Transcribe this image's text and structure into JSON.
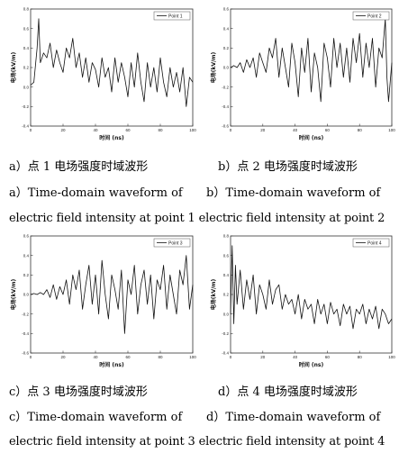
{
  "captions": {
    "a_cn": "a）点 1 电场强度时域波形",
    "b_cn": "b）点 2 电场强度时域波形",
    "ab_en_1a": "a）Time-domain waveform of",
    "ab_en_1b": "b）Time-domain waveform of",
    "ab_en_2": "electric field intensity at point 1 electric field intensity at point 2",
    "c_cn": "c）点 3 电场强度时域波形",
    "d_cn": "d）点 4 电场强度时域波形",
    "cd_en_1a": "c）Time-domain waveform of",
    "cd_en_1b": "d）Time-domain waveform of",
    "cd_en_2": "electric field intensity at point 3 electric field intensity at point 4"
  },
  "chart_data": [
    {
      "type": "line",
      "xlabel": "时间 (ns)",
      "ylabel": "电场(kV/m)",
      "xlim": [
        0,
        100
      ],
      "ylim": [
        -0.4,
        0.8
      ],
      "xticks": [
        "0",
        "20",
        "40",
        "60",
        "80",
        "100"
      ],
      "yticks": [
        "-0.4",
        "-0.2",
        "0.0",
        "0.2",
        "0.4",
        "0.6",
        "0.8"
      ],
      "legend": "Point 1",
      "legend_position": "top-right",
      "series": [
        {
          "name": "Point 1",
          "x": [
            0,
            2,
            4,
            5,
            6,
            8,
            10,
            12,
            14,
            16,
            18,
            20,
            22,
            24,
            26,
            28,
            30,
            32,
            34,
            36,
            38,
            40,
            42,
            44,
            46,
            48,
            50,
            52,
            54,
            56,
            58,
            60,
            62,
            64,
            66,
            68,
            70,
            72,
            74,
            76,
            78,
            80,
            82,
            84,
            86,
            88,
            90,
            92,
            94,
            96,
            98,
            100
          ],
          "y": [
            0.02,
            0.05,
            0.4,
            0.7,
            0.25,
            0.35,
            0.3,
            0.45,
            0.2,
            0.38,
            0.25,
            0.15,
            0.4,
            0.3,
            0.5,
            0.2,
            0.35,
            0.1,
            0.3,
            0.05,
            0.25,
            0.18,
            0.0,
            0.3,
            0.1,
            0.2,
            -0.05,
            0.3,
            0.05,
            0.25,
            0.1,
            -0.1,
            0.25,
            0.0,
            0.35,
            0.05,
            -0.15,
            0.25,
            0.0,
            0.2,
            -0.05,
            0.3,
            0.05,
            -0.1,
            0.2,
            0.0,
            0.15,
            -0.05,
            0.2,
            -0.2,
            0.1,
            0.05
          ]
        }
      ]
    },
    {
      "type": "line",
      "xlabel": "时间 (ns)",
      "ylabel": "电场(kV/m)",
      "xlim": [
        0,
        100
      ],
      "ylim": [
        -0.6,
        0.6
      ],
      "xticks": [
        "0",
        "20",
        "40",
        "60",
        "80",
        "100"
      ],
      "yticks": [
        "-0.6",
        "-0.4",
        "-0.2",
        "0.0",
        "0.2",
        "0.4",
        "0.6"
      ],
      "legend": "Point 2",
      "legend_position": "top-right",
      "series": [
        {
          "name": "Point 2",
          "x": [
            0,
            2,
            4,
            6,
            8,
            10,
            12,
            14,
            16,
            18,
            20,
            22,
            24,
            26,
            28,
            30,
            32,
            34,
            36,
            38,
            40,
            42,
            44,
            46,
            48,
            50,
            52,
            54,
            56,
            58,
            60,
            62,
            64,
            66,
            68,
            70,
            72,
            74,
            76,
            78,
            80,
            82,
            84,
            86,
            88,
            90,
            92,
            94,
            96,
            97,
            98,
            100
          ],
          "y": [
            0.0,
            0.02,
            0.0,
            0.05,
            -0.05,
            0.08,
            0.0,
            0.1,
            -0.1,
            0.15,
            0.05,
            -0.05,
            0.2,
            0.1,
            0.3,
            -0.1,
            0.2,
            0.0,
            -0.2,
            0.25,
            0.05,
            -0.3,
            0.2,
            -0.05,
            0.3,
            -0.25,
            0.15,
            0.0,
            -0.35,
            0.25,
            0.1,
            -0.2,
            0.3,
            0.0,
            0.25,
            -0.1,
            0.2,
            -0.15,
            0.3,
            0.05,
            0.35,
            -0.1,
            0.25,
            0.0,
            0.3,
            -0.2,
            0.2,
            0.1,
            0.5,
            -0.1,
            -0.35,
            0.05
          ]
        }
      ]
    },
    {
      "type": "line",
      "xlabel": "时间 (ns)",
      "ylabel": "电场(kV/m)",
      "xlim": [
        0,
        100
      ],
      "ylim": [
        -0.6,
        0.6
      ],
      "xticks": [
        "0",
        "20",
        "40",
        "60",
        "80",
        "100"
      ],
      "yticks": [
        "-0.6",
        "-0.4",
        "-0.2",
        "0.0",
        "0.2",
        "0.4",
        "0.6"
      ],
      "legend": "Point 3",
      "legend_position": "top-right",
      "series": [
        {
          "name": "Point 3",
          "x": [
            0,
            2,
            4,
            6,
            8,
            10,
            12,
            14,
            16,
            18,
            20,
            22,
            24,
            26,
            28,
            30,
            32,
            34,
            36,
            38,
            40,
            42,
            44,
            46,
            48,
            50,
            52,
            54,
            56,
            58,
            60,
            62,
            64,
            66,
            68,
            70,
            72,
            74,
            76,
            78,
            80,
            82,
            84,
            86,
            88,
            90,
            92,
            94,
            96,
            98,
            100
          ],
          "y": [
            0.0,
            0.01,
            0.0,
            0.02,
            0.0,
            0.05,
            -0.03,
            0.1,
            -0.05,
            0.08,
            0.0,
            0.15,
            -0.1,
            0.2,
            0.05,
            0.25,
            -0.15,
            0.1,
            0.3,
            -0.1,
            0.2,
            -0.2,
            0.35,
            0.0,
            -0.25,
            0.2,
            0.05,
            -0.15,
            0.25,
            -0.4,
            0.15,
            0.0,
            0.3,
            -0.2,
            0.1,
            0.25,
            -0.1,
            0.2,
            -0.25,
            0.15,
            0.05,
            0.3,
            -0.15,
            0.2,
            0.0,
            -0.2,
            0.25,
            0.1,
            0.4,
            -0.15,
            0.1
          ]
        }
      ]
    },
    {
      "type": "line",
      "xlabel": "时间 (ns)",
      "ylabel": "电场(kV/m)",
      "xlim": [
        0,
        100
      ],
      "ylim": [
        -0.4,
        0.8
      ],
      "xticks": [
        "0",
        "20",
        "40",
        "60",
        "80",
        "100"
      ],
      "yticks": [
        "-0.4",
        "-0.2",
        "0.0",
        "0.2",
        "0.4",
        "0.6",
        "0.8"
      ],
      "legend": "Point 4",
      "legend_position": "top-right",
      "series": [
        {
          "name": "Point 4",
          "x": [
            0,
            1,
            2,
            3,
            4,
            6,
            8,
            10,
            12,
            14,
            16,
            18,
            20,
            22,
            24,
            26,
            28,
            30,
            32,
            34,
            36,
            38,
            40,
            42,
            44,
            46,
            48,
            50,
            52,
            54,
            56,
            58,
            60,
            62,
            64,
            66,
            68,
            70,
            72,
            74,
            76,
            78,
            80,
            82,
            84,
            86,
            88,
            90,
            92,
            94,
            96,
            98,
            100
          ],
          "y": [
            0.0,
            0.7,
            -0.1,
            0.5,
            0.1,
            0.45,
            0.05,
            0.35,
            0.15,
            0.4,
            0.0,
            0.3,
            0.2,
            0.05,
            0.35,
            0.1,
            0.25,
            0.3,
            0.05,
            0.2,
            0.1,
            0.15,
            0.0,
            0.2,
            -0.05,
            0.15,
            0.05,
            0.1,
            -0.1,
            0.15,
            0.0,
            0.1,
            -0.1,
            0.12,
            0.0,
            0.05,
            -0.12,
            0.1,
            0.0,
            0.08,
            -0.15,
            0.05,
            0.0,
            0.1,
            -0.1,
            0.05,
            -0.05,
            0.08,
            -0.15,
            0.05,
            0.0,
            -0.1,
            -0.05
          ]
        }
      ]
    }
  ]
}
